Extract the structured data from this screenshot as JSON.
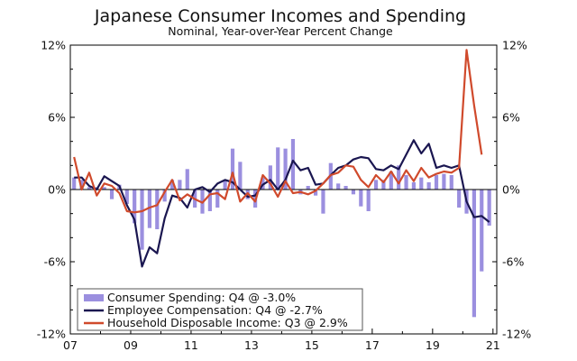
{
  "chart_data": {
    "type": "bar+line",
    "title": "Japanese Consumer Incomes and Spending",
    "subtitle": "Nominal, Year-over-Year Percent Change",
    "x_ticks": [
      "07",
      "09",
      "11",
      "13",
      "15",
      "17",
      "19",
      "21"
    ],
    "x_tick_values": [
      2007,
      2009,
      2011,
      2013,
      2015,
      2017,
      2019,
      2021
    ],
    "xlim": [
      2007,
      2021.125
    ],
    "y_ticks": [
      "12%",
      "6%",
      "0%",
      "-6%",
      "-12%"
    ],
    "y_tick_values": [
      12,
      6,
      0,
      -6,
      -12
    ],
    "ylim": [
      -12,
      12
    ],
    "grid": false,
    "legend_position": "bottom-left",
    "series": [
      {
        "name": "Consumer Spending: Q4 @ -3.0%",
        "type": "bar",
        "color": "#9b8fdf",
        "x": [
          2007.125,
          2007.375,
          2007.625,
          2007.875,
          2008.125,
          2008.375,
          2008.625,
          2008.875,
          2009.125,
          2009.375,
          2009.625,
          2009.875,
          2010.125,
          2010.375,
          2010.625,
          2010.875,
          2011.125,
          2011.375,
          2011.625,
          2011.875,
          2012.125,
          2012.375,
          2012.625,
          2012.875,
          2013.125,
          2013.375,
          2013.625,
          2013.875,
          2014.125,
          2014.375,
          2014.625,
          2014.875,
          2015.125,
          2015.375,
          2015.625,
          2015.875,
          2016.125,
          2016.375,
          2016.625,
          2016.875,
          2017.125,
          2017.375,
          2017.625,
          2017.875,
          2018.125,
          2018.375,
          2018.625,
          2018.875,
          2019.125,
          2019.375,
          2019.625,
          2019.875,
          2020.125,
          2020.375,
          2020.625,
          2020.875
        ],
        "values": [
          1.0,
          0.8,
          0.2,
          0.2,
          0.2,
          -0.8,
          0.4,
          -1.2,
          -2.8,
          -5.0,
          -3.2,
          -3.3,
          -1.0,
          0.8,
          0.8,
          1.7,
          -1.5,
          -2.0,
          -1.8,
          -1.5,
          0.8,
          3.4,
          2.3,
          -0.8,
          -1.5,
          1.0,
          2.0,
          3.5,
          3.4,
          4.2,
          -0.4,
          0.3,
          -0.5,
          -2.0,
          2.2,
          0.5,
          0.3,
          -0.4,
          -1.4,
          -1.8,
          0.8,
          0.8,
          1.5,
          2.0,
          1.2,
          0.6,
          1.0,
          0.6,
          1.2,
          1.3,
          1.2,
          -1.5,
          -2.0,
          -10.6,
          -6.8,
          -3.0
        ]
      },
      {
        "name": "Employee Compensation: Q4 @ -2.7%",
        "type": "line",
        "color": "#1a1650",
        "x": [
          2007.125,
          2007.375,
          2007.625,
          2007.875,
          2008.125,
          2008.375,
          2008.625,
          2008.875,
          2009.125,
          2009.375,
          2009.625,
          2009.875,
          2010.125,
          2010.375,
          2010.625,
          2010.875,
          2011.125,
          2011.375,
          2011.625,
          2011.875,
          2012.125,
          2012.375,
          2012.625,
          2012.875,
          2013.125,
          2013.375,
          2013.625,
          2013.875,
          2014.125,
          2014.375,
          2014.625,
          2014.875,
          2015.125,
          2015.375,
          2015.625,
          2015.875,
          2016.125,
          2016.375,
          2016.625,
          2016.875,
          2017.125,
          2017.375,
          2017.625,
          2017.875,
          2018.125,
          2018.375,
          2018.625,
          2018.875,
          2019.125,
          2019.375,
          2019.625,
          2019.875,
          2020.125,
          2020.375,
          2020.625,
          2020.875
        ],
        "values": [
          1.0,
          1.0,
          0.3,
          0.0,
          1.1,
          0.7,
          0.3,
          -1.3,
          -2.5,
          -6.4,
          -4.8,
          -5.3,
          -2.4,
          -0.5,
          -0.7,
          -1.5,
          0.0,
          0.2,
          -0.2,
          0.5,
          0.8,
          0.6,
          0.0,
          -0.6,
          -0.5,
          0.4,
          0.8,
          0.0,
          0.8,
          2.4,
          1.6,
          1.8,
          0.4,
          0.5,
          1.2,
          1.8,
          2.0,
          2.5,
          2.7,
          2.6,
          1.7,
          1.6,
          2.0,
          1.7,
          2.9,
          4.1,
          3.0,
          3.8,
          1.8,
          2.0,
          1.8,
          2.0,
          -1.0,
          -2.3,
          -2.2,
          -2.7
        ]
      },
      {
        "name": "Household Disposable Income: Q3 @ 2.9%",
        "type": "line",
        "color": "#d04a2c",
        "x": [
          2007.125,
          2007.375,
          2007.625,
          2007.875,
          2008.125,
          2008.375,
          2008.625,
          2008.875,
          2009.125,
          2009.375,
          2009.625,
          2009.875,
          2010.125,
          2010.375,
          2010.625,
          2010.875,
          2011.125,
          2011.375,
          2011.625,
          2011.875,
          2012.125,
          2012.375,
          2012.625,
          2012.875,
          2013.125,
          2013.375,
          2013.625,
          2013.875,
          2014.125,
          2014.375,
          2014.625,
          2014.875,
          2015.125,
          2015.375,
          2015.625,
          2015.875,
          2016.125,
          2016.375,
          2016.625,
          2016.875,
          2017.125,
          2017.375,
          2017.625,
          2017.875,
          2018.125,
          2018.375,
          2018.625,
          2018.875,
          2019.125,
          2019.375,
          2019.625,
          2019.875,
          2020.125,
          2020.375,
          2020.625
        ],
        "values": [
          2.7,
          0.0,
          1.4,
          -0.5,
          0.5,
          0.3,
          -0.3,
          -1.8,
          -1.9,
          -1.8,
          -1.5,
          -1.3,
          -0.2,
          0.8,
          -0.9,
          -0.4,
          -0.8,
          -1.1,
          -0.4,
          -0.3,
          -0.8,
          1.4,
          -1.0,
          -0.3,
          -1.0,
          1.2,
          0.5,
          -0.6,
          0.7,
          -0.3,
          -0.2,
          -0.4,
          -0.1,
          0.5,
          1.2,
          1.4,
          2.0,
          1.9,
          0.8,
          0.2,
          1.2,
          0.6,
          1.5,
          0.5,
          1.6,
          0.7,
          1.8,
          1.0,
          1.3,
          1.5,
          1.4,
          1.8,
          11.6,
          7.0,
          2.9
        ]
      }
    ]
  }
}
